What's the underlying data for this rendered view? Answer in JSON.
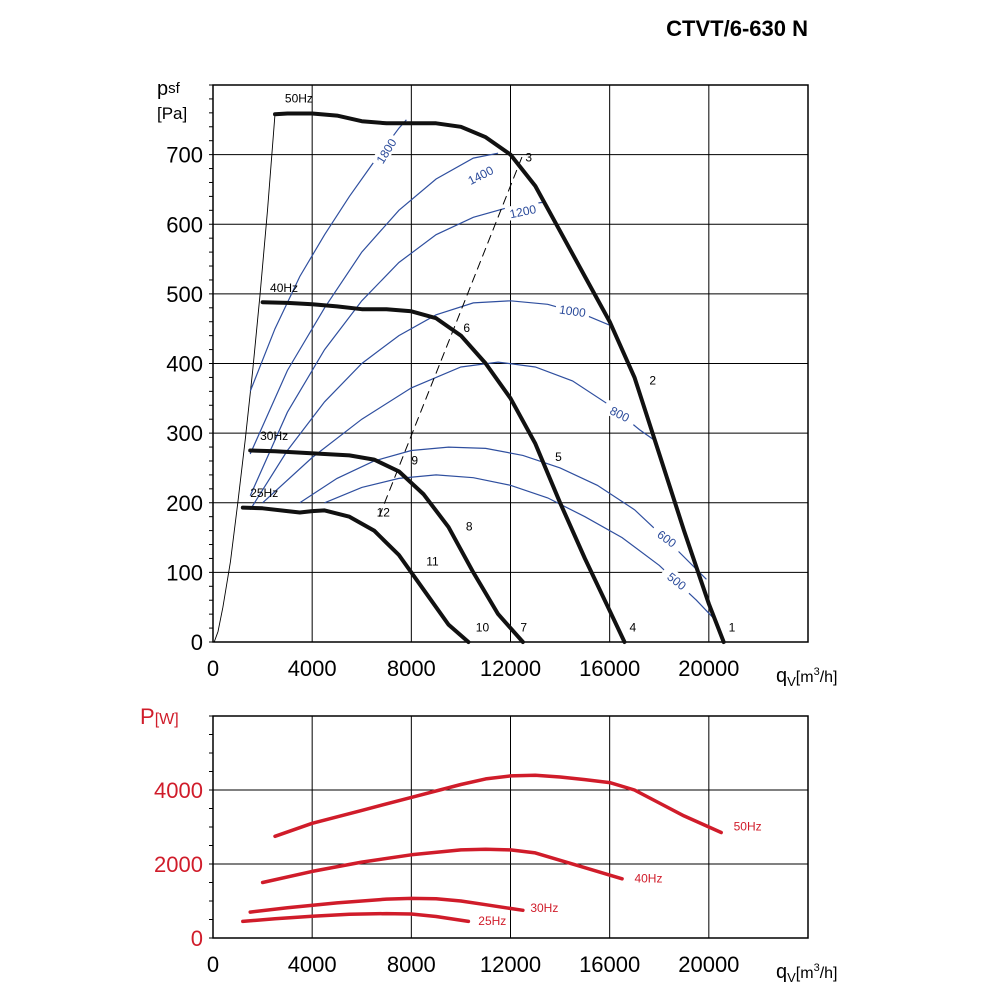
{
  "title": "CTVT/6-630 N",
  "colors": {
    "fan": "#111111",
    "rpm": "#2f4f9f",
    "power": "#d01c2a",
    "grid": "#000000"
  },
  "chart_data": [
    {
      "type": "line",
      "ylabel_main": "p",
      "ylabel_sub": "sf",
      "ylabel_unit": "[Pa]",
      "xlabel_main": "q",
      "xlabel_sub": "V",
      "xlabel_unit": "[m",
      "xlabel_sup": "3",
      "xlabel_end": "/h]",
      "xlim": [
        0,
        24000
      ],
      "ylim": [
        0,
        800
      ],
      "xticks": [
        0,
        4000,
        8000,
        12000,
        16000,
        20000
      ],
      "yticks": [
        0,
        100,
        200,
        300,
        400,
        500,
        600,
        700
      ],
      "grid": true,
      "fan_curves": [
        {
          "name": "50Hz",
          "x": [
            2500,
            3000,
            4000,
            5000,
            6000,
            7000,
            8000,
            9000,
            10000,
            11000,
            12000,
            13000,
            14000,
            15000,
            16000,
            17000,
            18000,
            19000,
            20000,
            20600
          ],
          "y": [
            758,
            759,
            759,
            756,
            748,
            745,
            745,
            745,
            740,
            725,
            700,
            655,
            590,
            525,
            460,
            380,
            270,
            160,
            55,
            0
          ]
        },
        {
          "name": "40Hz",
          "x": [
            2000,
            3000,
            4000,
            5000,
            6000,
            7000,
            8000,
            9000,
            10000,
            11000,
            12000,
            13000,
            14000,
            15000,
            16000,
            16600
          ],
          "y": [
            488,
            487,
            485,
            482,
            478,
            478,
            475,
            465,
            440,
            400,
            350,
            285,
            200,
            120,
            45,
            0
          ]
        },
        {
          "name": "30Hz",
          "x": [
            1500,
            2500,
            3500,
            4500,
            5500,
            6500,
            7500,
            8500,
            9500,
            10500,
            11500,
            12500
          ],
          "y": [
            275,
            274,
            272,
            270,
            268,
            262,
            245,
            212,
            165,
            100,
            40,
            0
          ]
        },
        {
          "name": "25Hz",
          "x": [
            1200,
            2000,
            3000,
            3500,
            4000,
            4500,
            5500,
            6500,
            7500,
            8500,
            9500,
            10300
          ],
          "y": [
            193,
            192,
            188,
            186,
            188,
            189,
            180,
            160,
            125,
            75,
            25,
            0
          ]
        }
      ],
      "system_line": {
        "x": [
          50,
          200,
          400,
          700,
          1000,
          1300,
          1600,
          1900,
          2200,
          2500
        ],
        "y": [
          0,
          15,
          50,
          115,
          200,
          290,
          390,
          500,
          620,
          758
        ]
      },
      "speed_curves": [
        {
          "rpm": "1800",
          "x": [
            1500,
            2500,
            3500,
            4500,
            5500,
            6500,
            7500,
            7800
          ],
          "y": [
            360,
            450,
            525,
            585,
            640,
            690,
            738,
            750
          ]
        },
        {
          "rpm": "1400",
          "x": [
            1500,
            3000,
            4500,
            6000,
            7500,
            9000,
            10500,
            11500
          ],
          "y": [
            270,
            390,
            480,
            560,
            620,
            665,
            695,
            702
          ]
        },
        {
          "rpm": "1200",
          "x": [
            1500,
            3000,
            4500,
            6000,
            7500,
            9000,
            10500,
            12000,
            13400
          ],
          "y": [
            210,
            330,
            420,
            490,
            545,
            585,
            610,
            625,
            632
          ]
        },
        {
          "rpm": "1000",
          "x": [
            1500,
            3000,
            4500,
            6000,
            7500,
            9000,
            10500,
            12000,
            13500,
            15000,
            16000
          ],
          "y": [
            190,
            275,
            345,
            400,
            440,
            470,
            487,
            490,
            485,
            470,
            455
          ]
        },
        {
          "rpm": "800",
          "x": [
            2000,
            4000,
            6000,
            8000,
            10000,
            11500,
            13000,
            14500,
            16000,
            17200,
            17800
          ],
          "y": [
            200,
            265,
            320,
            365,
            395,
            402,
            395,
            375,
            340,
            305,
            290
          ]
        },
        {
          "rpm": "600",
          "x": [
            3500,
            5000,
            6500,
            8000,
            9500,
            11000,
            12500,
            14000,
            15500,
            17000,
            18500,
            19900
          ],
          "y": [
            200,
            235,
            260,
            275,
            280,
            278,
            268,
            250,
            225,
            190,
            140,
            90
          ]
        },
        {
          "rpm": "500",
          "x": [
            4500,
            6000,
            7500,
            9000,
            10500,
            12000,
            13500,
            15000,
            16500,
            18000,
            19500,
            20300
          ],
          "y": [
            200,
            222,
            235,
            240,
            236,
            225,
            207,
            180,
            150,
            110,
            60,
            30
          ]
        }
      ],
      "op_line": {
        "x": [
          6700,
          12500
        ],
        "y": [
          180,
          700
        ]
      },
      "point_labels": [
        {
          "label": "1",
          "x": 20800,
          "y": 15
        },
        {
          "label": "2",
          "x": 17600,
          "y": 370
        },
        {
          "label": "3",
          "x": 12600,
          "y": 690
        },
        {
          "label": "4",
          "x": 16800,
          "y": 15
        },
        {
          "label": "5",
          "x": 13800,
          "y": 260
        },
        {
          "label": "6",
          "x": 10100,
          "y": 445
        },
        {
          "label": "7",
          "x": 12400,
          "y": 15
        },
        {
          "label": "8",
          "x": 10200,
          "y": 160
        },
        {
          "label": "9",
          "x": 8000,
          "y": 255
        },
        {
          "label": "10",
          "x": 10600,
          "y": 15
        },
        {
          "label": "11",
          "x": 8600,
          "y": 110
        },
        {
          "label": "12",
          "x": 6600,
          "y": 180
        }
      ],
      "hz_labels": [
        {
          "label": "50Hz",
          "x": 2900,
          "y": 775
        },
        {
          "label": "40Hz",
          "x": 2300,
          "y": 503
        },
        {
          "label": "30Hz",
          "x": 1900,
          "y": 290
        },
        {
          "label": "25Hz",
          "x": 1500,
          "y": 208
        }
      ],
      "rpm_label_pos": [
        {
          "label": "1800",
          "x": 7000,
          "y": 705,
          "angle": -58
        },
        {
          "label": "1400",
          "x": 10800,
          "y": 670,
          "angle": -27
        },
        {
          "label": "1200",
          "x": 12500,
          "y": 618,
          "angle": -12
        },
        {
          "label": "1000",
          "x": 14500,
          "y": 475,
          "angle": 8
        },
        {
          "label": "800",
          "x": 16400,
          "y": 327,
          "angle": 27
        },
        {
          "label": "600",
          "x": 18300,
          "y": 148,
          "angle": 36
        },
        {
          "label": "500",
          "x": 18700,
          "y": 87,
          "angle": 38
        }
      ]
    },
    {
      "type": "line",
      "ylabel_main": "P",
      "ylabel_unit": "[W]",
      "xlabel_main": "q",
      "xlabel_sub": "V",
      "xlabel_unit": "[m",
      "xlabel_sup": "3",
      "xlabel_end": "/h]",
      "xlim": [
        0,
        24000
      ],
      "ylim": [
        0,
        6000
      ],
      "xticks": [
        0,
        4000,
        8000,
        12000,
        16000,
        20000
      ],
      "yticks": [
        0,
        2000,
        4000
      ],
      "grid": true,
      "series": [
        {
          "name": "50Hz",
          "x": [
            2500,
            4000,
            6000,
            8000,
            10000,
            11000,
            12000,
            13000,
            14000,
            15000,
            16000,
            17000,
            18000,
            19000,
            20500
          ],
          "y": [
            2750,
            3100,
            3450,
            3800,
            4150,
            4300,
            4380,
            4400,
            4350,
            4280,
            4200,
            4000,
            3650,
            3300,
            2850
          ]
        },
        {
          "name": "40Hz",
          "x": [
            2000,
            4000,
            6000,
            8000,
            10000,
            11000,
            12000,
            13000,
            14000,
            15000,
            16500
          ],
          "y": [
            1500,
            1800,
            2050,
            2250,
            2380,
            2400,
            2380,
            2300,
            2100,
            1900,
            1600
          ]
        },
        {
          "name": "30Hz",
          "x": [
            1500,
            3000,
            5000,
            7000,
            8000,
            9000,
            10000,
            11000,
            12500
          ],
          "y": [
            700,
            820,
            950,
            1050,
            1070,
            1060,
            1000,
            900,
            750
          ]
        },
        {
          "name": "25Hz",
          "x": [
            1200,
            2500,
            4000,
            5500,
            7000,
            8000,
            9000,
            10300
          ],
          "y": [
            450,
            520,
            590,
            640,
            660,
            650,
            580,
            450
          ]
        }
      ],
      "hz_labels": [
        {
          "label": "50Hz",
          "x": 21000,
          "y": 2900
        },
        {
          "label": "40Hz",
          "x": 17000,
          "y": 1500
        },
        {
          "label": "30Hz",
          "x": 12800,
          "y": 700
        },
        {
          "label": "25Hz",
          "x": 10700,
          "y": 350
        }
      ]
    }
  ]
}
